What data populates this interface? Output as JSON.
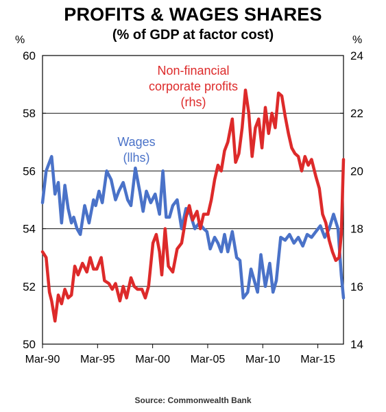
{
  "chart_data": {
    "type": "line",
    "title": "PROFITS & WAGES SHARES",
    "subtitle": "(% of GDP at factor cost)",
    "source": "Source: Commonwealth Bank",
    "y_left_unit": "%",
    "y_right_unit": "%",
    "y_left_ticks": [
      "60",
      "58",
      "56",
      "54",
      "52",
      "50"
    ],
    "y_right_ticks": [
      "24",
      "22",
      "20",
      "18",
      "16",
      "14"
    ],
    "x_ticks": [
      "Mar-90",
      "Mar-95",
      "Mar-00",
      "Mar-05",
      "Mar-10",
      "Mar-15"
    ],
    "y_left_range": [
      50,
      60
    ],
    "y_right_range": [
      14,
      24
    ],
    "x_range": [
      1990.17,
      2017.5
    ],
    "grid": "horizontal",
    "annotations": [
      {
        "lines": [
          "Wages",
          "(llhs)"
        ],
        "color": "#4a72c8"
      },
      {
        "lines": [
          "Non-financial",
          "corporate profits",
          "(rhs)"
        ],
        "color": "#dd2a2a"
      }
    ],
    "series": [
      {
        "name": "Wages",
        "axis": "left",
        "color": "#4a72c8",
        "x": [
          1990.17,
          1990.5,
          1991.0,
          1991.3,
          1991.6,
          1991.9,
          1992.2,
          1992.5,
          1992.8,
          1993.0,
          1993.3,
          1993.6,
          1994.0,
          1994.4,
          1994.8,
          1995.0,
          1995.3,
          1995.6,
          1996.0,
          1996.4,
          1996.8,
          1997.1,
          1997.5,
          1997.9,
          1998.2,
          1998.6,
          1999.0,
          1999.3,
          1999.6,
          2000.0,
          2000.4,
          2000.8,
          2001.1,
          2001.4,
          2001.7,
          2002.0,
          2002.4,
          2002.8,
          2003.2,
          2003.6,
          2004.0,
          2004.4,
          2004.8,
          2005.1,
          2005.4,
          2005.8,
          2006.1,
          2006.4,
          2006.7,
          2007.0,
          2007.4,
          2007.8,
          2008.1,
          2008.4,
          2008.8,
          2009.1,
          2009.4,
          2009.7,
          2010.0,
          2010.4,
          2010.8,
          2011.1,
          2011.4,
          2011.8,
          2012.2,
          2012.6,
          2013.0,
          2013.4,
          2013.8,
          2014.2,
          2014.6,
          2015.0,
          2015.4,
          2015.8,
          2016.2,
          2016.6,
          2017.0,
          2017.3,
          2017.5
        ],
        "values": [
          54.9,
          56.0,
          56.5,
          55.2,
          55.6,
          54.2,
          55.5,
          54.7,
          54.2,
          54.4,
          54.0,
          53.8,
          54.8,
          54.2,
          55.0,
          54.8,
          55.3,
          54.9,
          56.0,
          55.7,
          55.0,
          55.3,
          55.6,
          55.0,
          54.8,
          56.1,
          55.3,
          54.6,
          55.3,
          54.9,
          55.2,
          54.5,
          56.0,
          54.4,
          54.4,
          54.8,
          55.0,
          54.0,
          54.7,
          54.5,
          54.0,
          54.2,
          54.0,
          53.9,
          53.3,
          53.7,
          53.5,
          53.2,
          53.8,
          53.2,
          53.9,
          53.0,
          52.9,
          51.6,
          51.8,
          52.6,
          52.2,
          51.8,
          53.1,
          52.0,
          52.8,
          51.8,
          52.2,
          53.7,
          53.6,
          53.8,
          53.5,
          53.7,
          53.4,
          53.8,
          53.7,
          53.9,
          54.1,
          53.7,
          54.0,
          54.5,
          54.0,
          52.4,
          51.6
        ]
      },
      {
        "name": "Non-financial corporate profits",
        "axis": "right",
        "color": "#dd2a2a",
        "x": [
          1990.17,
          1990.5,
          1990.8,
          1991.0,
          1991.3,
          1991.6,
          1991.9,
          1992.2,
          1992.5,
          1992.8,
          1993.1,
          1993.4,
          1993.8,
          1994.2,
          1994.5,
          1994.8,
          1995.1,
          1995.5,
          1995.8,
          1996.2,
          1996.5,
          1996.8,
          1997.2,
          1997.5,
          1997.8,
          1998.2,
          1998.5,
          1998.8,
          1999.2,
          1999.5,
          1999.8,
          2000.2,
          2000.5,
          2000.8,
          2001.0,
          2001.3,
          2001.6,
          2002.0,
          2002.4,
          2002.8,
          2003.2,
          2003.5,
          2003.8,
          2004.2,
          2004.5,
          2004.8,
          2005.2,
          2005.5,
          2005.8,
          2006.1,
          2006.4,
          2006.7,
          2007.0,
          2007.4,
          2007.7,
          2008.0,
          2008.3,
          2008.6,
          2008.9,
          2009.2,
          2009.5,
          2009.8,
          2010.1,
          2010.4,
          2010.7,
          2011.0,
          2011.3,
          2011.6,
          2011.9,
          2012.2,
          2012.5,
          2012.8,
          2013.1,
          2013.4,
          2013.7,
          2014.0,
          2014.3,
          2014.6,
          2015.0,
          2015.3,
          2015.6,
          2015.9,
          2016.2,
          2016.5,
          2016.8,
          2017.1,
          2017.3,
          2017.5
        ],
        "values": [
          17.2,
          17.0,
          15.8,
          15.5,
          14.8,
          15.7,
          15.4,
          15.9,
          15.6,
          15.7,
          16.7,
          16.4,
          16.8,
          16.5,
          17.0,
          16.6,
          16.6,
          17.0,
          16.2,
          16.1,
          15.9,
          16.1,
          15.5,
          16.0,
          15.6,
          16.3,
          16.0,
          15.9,
          15.9,
          15.6,
          16.0,
          17.5,
          17.8,
          17.2,
          16.4,
          18.0,
          16.7,
          16.5,
          17.3,
          17.5,
          18.4,
          18.8,
          18.3,
          18.6,
          18.0,
          18.5,
          18.5,
          19.0,
          19.7,
          20.2,
          20.0,
          20.7,
          21.0,
          21.8,
          20.3,
          20.6,
          21.5,
          22.8,
          22.0,
          20.5,
          21.5,
          21.8,
          20.8,
          22.2,
          21.3,
          22.0,
          21.5,
          22.7,
          22.6,
          21.9,
          21.3,
          20.8,
          20.6,
          20.5,
          20.0,
          20.5,
          20.2,
          20.4,
          19.8,
          19.4,
          18.5,
          18.2,
          17.6,
          17.2,
          16.9,
          17.0,
          17.8,
          20.4
        ]
      }
    ]
  }
}
